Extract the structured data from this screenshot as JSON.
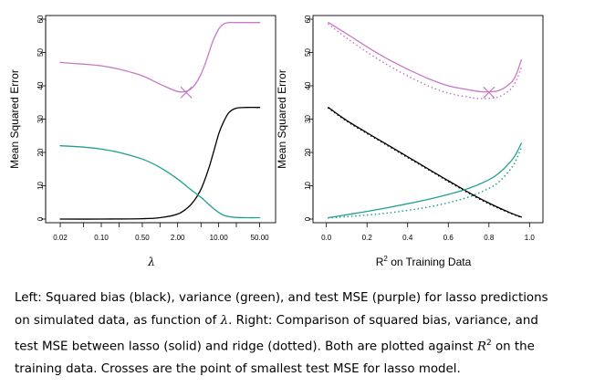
{
  "colors": {
    "bias": "#000000",
    "variance": "#1fa08f",
    "mse": "#c879c8",
    "axis": "#000000"
  },
  "chart_data": [
    {
      "type": "line",
      "panel": "left",
      "xscale": "log",
      "xlim": [
        0.015,
        70
      ],
      "ylim": [
        0,
        60
      ],
      "xlabel": "λ",
      "ylabel": "Mean Squared Error",
      "xticks": [
        0.02,
        0.1,
        0.5,
        2.0,
        10.0,
        50.0
      ],
      "xtick_labels": [
        "0.02",
        "0.10",
        "0.50",
        "2.00",
        "10.00",
        "50.00"
      ],
      "xtick_minor": [
        0.05,
        0.2,
        1.0,
        5.0,
        20.0,
        100.0
      ],
      "yticks": [
        0,
        10,
        20,
        30,
        40,
        50,
        60
      ],
      "ytick_labels": [
        "0",
        "10",
        "20",
        "30",
        "40",
        "50",
        "60"
      ],
      "series": [
        {
          "name": "Squared bias",
          "color": "bias",
          "x": [
            0.02,
            0.1,
            0.5,
            1.0,
            2.0,
            3.0,
            4.0,
            5.0,
            6.0,
            7.0,
            8.0,
            10.0,
            12.0,
            15.0,
            20.0,
            30.0,
            50.0
          ],
          "y": [
            0,
            0,
            0.1,
            0.4,
            1.5,
            3.5,
            6.0,
            9.0,
            12.5,
            16.0,
            19.5,
            25.5,
            29.0,
            32.0,
            33.3,
            33.5,
            33.5
          ]
        },
        {
          "name": "Variance",
          "color": "variance",
          "x": [
            0.02,
            0.05,
            0.1,
            0.2,
            0.5,
            1.0,
            2.0,
            3.0,
            4.0,
            5.0,
            6.0,
            7.0,
            8.0,
            10.0,
            12.0,
            15.0,
            20.0,
            30.0,
            50.0
          ],
          "y": [
            22,
            21.6,
            21,
            20,
            18,
            15.5,
            12.0,
            9.5,
            7.8,
            6.5,
            5.3,
            4.2,
            3.3,
            2.0,
            1.2,
            0.7,
            0.5,
            0.4,
            0.4
          ]
        },
        {
          "name": "Test MSE",
          "color": "mse",
          "x": [
            0.02,
            0.05,
            0.1,
            0.2,
            0.5,
            1.0,
            2.0,
            3.0,
            4.0,
            5.0,
            6.0,
            7.0,
            8.0,
            10.0,
            12.0,
            15.0,
            20.0,
            30.0,
            50.0
          ],
          "y": [
            47,
            46.5,
            46,
            45,
            43,
            40.5,
            38.3,
            38.5,
            40.5,
            43.5,
            47,
            50.5,
            53.5,
            57,
            58.5,
            59,
            59,
            59,
            59
          ]
        }
      ],
      "markers": [
        {
          "label": "Smallest lasso test MSE",
          "shape": "cross",
          "x": 2.8,
          "y": 38
        }
      ]
    },
    {
      "type": "line",
      "panel": "right",
      "xlim": [
        -0.03,
        1.03
      ],
      "ylim": [
        0,
        60
      ],
      "xlabel": "R² on Training Data",
      "ylabel": "Mean Squared Error",
      "xticks": [
        0.0,
        0.2,
        0.4,
        0.6,
        0.8,
        1.0
      ],
      "xtick_labels": [
        "0.0",
        "0.2",
        "0.4",
        "0.6",
        "0.8",
        "1.0"
      ],
      "yticks": [
        0,
        10,
        20,
        30,
        40,
        50,
        60
      ],
      "ytick_labels": [
        "0",
        "10",
        "20",
        "30",
        "40",
        "50",
        "60"
      ],
      "series": [
        {
          "name": "Lasso squared bias",
          "color": "bias",
          "style": "solid",
          "x": [
            0.01,
            0.1,
            0.2,
            0.3,
            0.4,
            0.5,
            0.6,
            0.7,
            0.8,
            0.9,
            0.96
          ],
          "y": [
            33.5,
            29.6,
            25.9,
            22.3,
            18.7,
            15.1,
            11.5,
            8.0,
            4.8,
            2.0,
            0.6
          ]
        },
        {
          "name": "Ridge squared bias",
          "color": "bias",
          "style": "dotted",
          "x": [
            0.01,
            0.1,
            0.2,
            0.3,
            0.4,
            0.5,
            0.6,
            0.7,
            0.8,
            0.9,
            0.96
          ],
          "y": [
            33.3,
            29.4,
            25.7,
            22.1,
            18.5,
            14.9,
            11.3,
            7.8,
            4.6,
            1.9,
            0.5
          ]
        },
        {
          "name": "Lasso variance",
          "color": "variance",
          "style": "solid",
          "x": [
            0.01,
            0.1,
            0.2,
            0.3,
            0.4,
            0.5,
            0.6,
            0.7,
            0.8,
            0.85,
            0.9,
            0.93,
            0.96
          ],
          "y": [
            0.4,
            1.3,
            2.3,
            3.4,
            4.6,
            5.9,
            7.4,
            9.2,
            11.8,
            13.8,
            16.8,
            19.2,
            22.8
          ]
        },
        {
          "name": "Ridge variance",
          "color": "variance",
          "style": "dotted",
          "x": [
            0.01,
            0.1,
            0.2,
            0.3,
            0.4,
            0.5,
            0.6,
            0.7,
            0.8,
            0.85,
            0.9,
            0.93,
            0.96
          ],
          "y": [
            0.3,
            0.7,
            1.2,
            1.8,
            2.6,
            3.6,
            4.9,
            6.6,
            9.2,
            11.2,
            14.5,
            17.2,
            21.5
          ]
        },
        {
          "name": "Lasso test MSE",
          "color": "mse",
          "style": "solid",
          "x": [
            0.01,
            0.1,
            0.2,
            0.3,
            0.4,
            0.5,
            0.6,
            0.7,
            0.75,
            0.8,
            0.85,
            0.9,
            0.93,
            0.96
          ],
          "y": [
            59,
            55.6,
            51.7,
            48.1,
            45.0,
            42.2,
            40.0,
            38.8,
            38.3,
            38.2,
            38.6,
            40.5,
            42.8,
            47.8
          ]
        },
        {
          "name": "Ridge test MSE",
          "color": "mse",
          "style": "dotted",
          "x": [
            0.01,
            0.1,
            0.2,
            0.3,
            0.4,
            0.5,
            0.6,
            0.7,
            0.75,
            0.8,
            0.85,
            0.9,
            0.93,
            0.96
          ],
          "y": [
            58.5,
            54.3,
            50.1,
            46.3,
            43.0,
            40.0,
            37.8,
            36.6,
            36.2,
            36.2,
            36.7,
            38.6,
            41.0,
            45.5
          ]
        }
      ],
      "markers": [
        {
          "label": "Smallest lasso test MSE",
          "shape": "cross",
          "x": 0.8,
          "y": 38
        }
      ]
    }
  ],
  "caption": {
    "line1": "Left: Squared bias (black), variance (green), and test MSE (purple) for lasso predictions",
    "line2_a": "on simulated data, as function of ",
    "line2_lambda": "λ",
    "line2_b": ". Right: Comparison of squared bias, variance, and",
    "line3_a": "test MSE between lasso (solid) and ridge (dotted). Both are plotted against ",
    "line3_r": "R",
    "line3_sup": "2",
    "line3_b": " on the",
    "line4": "training data. Crosses are the point of smallest test MSE for lasso model."
  }
}
